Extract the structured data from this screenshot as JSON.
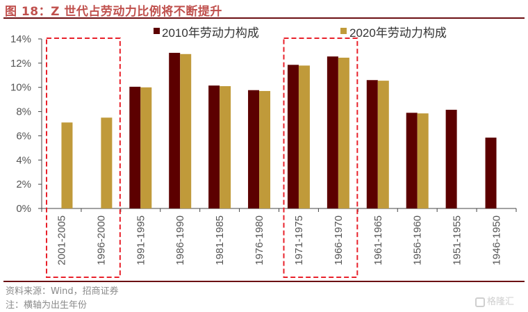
{
  "header": {
    "title": "图 18：Z 世代占劳动力比例将不断提升"
  },
  "footer": {
    "source": "资料来源：Wind，招商证券",
    "note": "注：横轴为出生年份",
    "watermark": "格隆汇"
  },
  "colors": {
    "series_2010": "#5C0000",
    "series_2020": "#C09A3A",
    "highlight_box": "#E8202A",
    "title": "#C0504D",
    "rule": "#6B0F12"
  },
  "chart_data": {
    "type": "bar",
    "title": "图 18：Z 世代占劳动力比例将不断提升",
    "xlabel": "",
    "ylabel": "",
    "ylim": [
      0,
      14
    ],
    "yticks": [
      0,
      2,
      4,
      6,
      8,
      10,
      12,
      14
    ],
    "ytick_labels": [
      "0%",
      "2%",
      "4%",
      "6%",
      "8%",
      "10%",
      "12%",
      "14%"
    ],
    "grid": false,
    "legend_position": "top",
    "categories": [
      "2001-2005",
      "1996-2000",
      "1991-1995",
      "1986-1990",
      "1981-1985",
      "1976-1980",
      "1971-1975",
      "1966-1970",
      "1961-1965",
      "1956-1960",
      "1951-1955",
      "1946-1950"
    ],
    "series": [
      {
        "name": "2010年劳动力构成",
        "color": "#5C0000",
        "values": [
          null,
          null,
          10.05,
          12.85,
          10.15,
          9.77,
          11.86,
          12.55,
          10.6,
          7.9,
          8.15,
          5.85
        ]
      },
      {
        "name": "2020年劳动力构成",
        "color": "#C09A3A",
        "values": [
          7.1,
          7.5,
          10.0,
          12.75,
          10.1,
          9.7,
          11.8,
          12.45,
          10.55,
          7.85,
          null,
          null
        ]
      }
    ],
    "highlight_groups": [
      [
        "2001-2005",
        "1996-2000"
      ],
      [
        "1971-1975",
        "1966-1970"
      ]
    ]
  }
}
